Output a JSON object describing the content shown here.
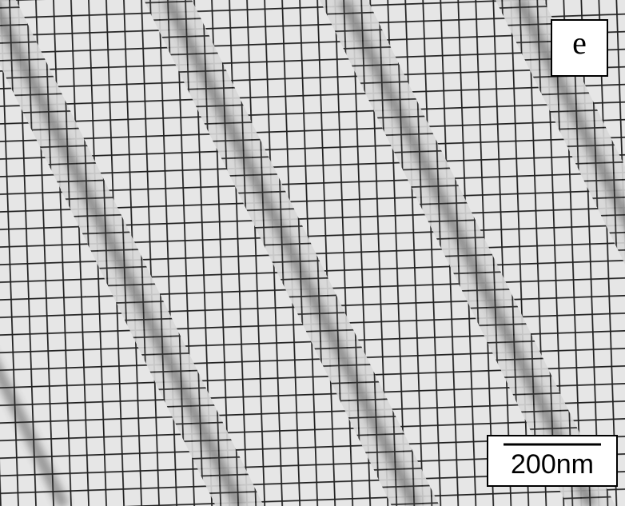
{
  "panel_label": "e",
  "scale_bar": {
    "label": "200nm"
  }
}
